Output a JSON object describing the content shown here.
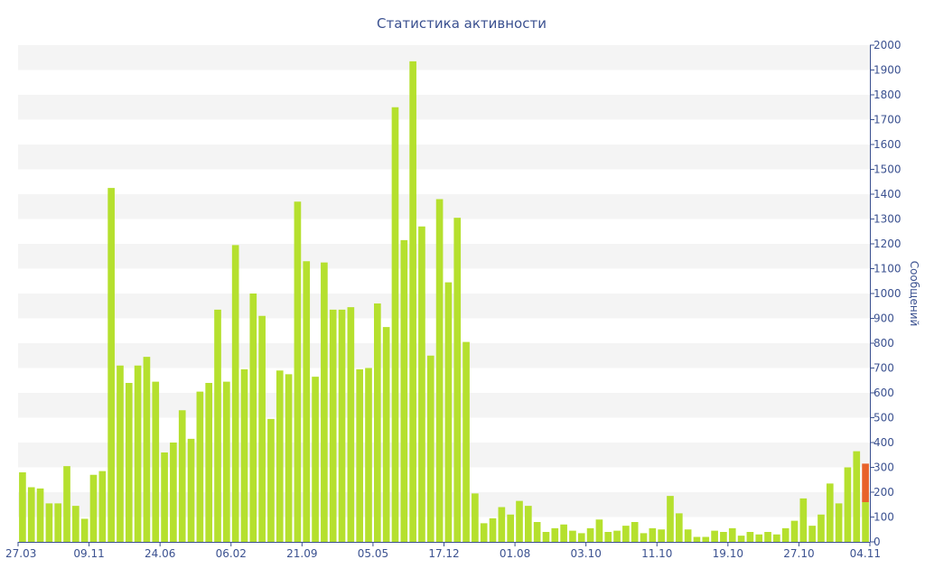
{
  "chart_data": {
    "type": "bar",
    "title": "Статистика активности",
    "ylabel": "Сообщений",
    "xlabel": "",
    "ylim": [
      0,
      2000
    ],
    "yticks": [
      0,
      100,
      200,
      300,
      400,
      500,
      600,
      700,
      800,
      900,
      1000,
      1100,
      1200,
      1300,
      1400,
      1500,
      1600,
      1700,
      1800,
      1900,
      2000
    ],
    "x_tick_labels": [
      "27.03",
      "09.11",
      "24.06",
      "06.02",
      "21.09",
      "05.05",
      "17.12",
      "01.08",
      "03.10",
      "11.10",
      "19.10",
      "27.10",
      "04.11"
    ],
    "grid": "horizontal alternating bands",
    "series": [
      {
        "values": [
          280,
          220,
          215,
          155,
          155,
          305,
          145,
          93,
          270,
          285,
          1425,
          710,
          640,
          710,
          745,
          645,
          360,
          400,
          530,
          415,
          605,
          640,
          935,
          645,
          1195,
          695,
          1000,
          910,
          495,
          690,
          675,
          1370,
          1130,
          665,
          1125,
          935,
          935,
          945,
          695,
          700,
          960,
          865,
          1750,
          1215,
          1935,
          1270,
          750,
          1380,
          1045,
          1305,
          805,
          195,
          75,
          95,
          140,
          110,
          165,
          145,
          80,
          40,
          55,
          70,
          45,
          35,
          55,
          90,
          40,
          45,
          65,
          80,
          35,
          55,
          50,
          185,
          115,
          50,
          20,
          20,
          45,
          40,
          55,
          25,
          40,
          30,
          40,
          30,
          55,
          85,
          175,
          65,
          110,
          235,
          155,
          300,
          365,
          160
        ],
        "color": "#b5e02e"
      },
      {
        "values": [
          0,
          0,
          0,
          0,
          0,
          0,
          0,
          0,
          0,
          0,
          0,
          0,
          0,
          0,
          0,
          0,
          0,
          0,
          0,
          0,
          0,
          0,
          0,
          0,
          0,
          0,
          0,
          0,
          0,
          0,
          0,
          0,
          0,
          0,
          0,
          0,
          0,
          0,
          0,
          0,
          0,
          0,
          0,
          0,
          0,
          0,
          0,
          0,
          0,
          0,
          0,
          0,
          0,
          0,
          0,
          0,
          0,
          0,
          0,
          0,
          0,
          0,
          0,
          0,
          0,
          0,
          0,
          0,
          0,
          0,
          0,
          0,
          0,
          0,
          0,
          0,
          0,
          0,
          0,
          0,
          0,
          0,
          0,
          0,
          0,
          0,
          0,
          0,
          0,
          0,
          0,
          0,
          0,
          0,
          0,
          155
        ],
        "color": "#e8622a"
      }
    ],
    "axis_color": "#3b5190",
    "band_color": "#f4f4f4"
  }
}
